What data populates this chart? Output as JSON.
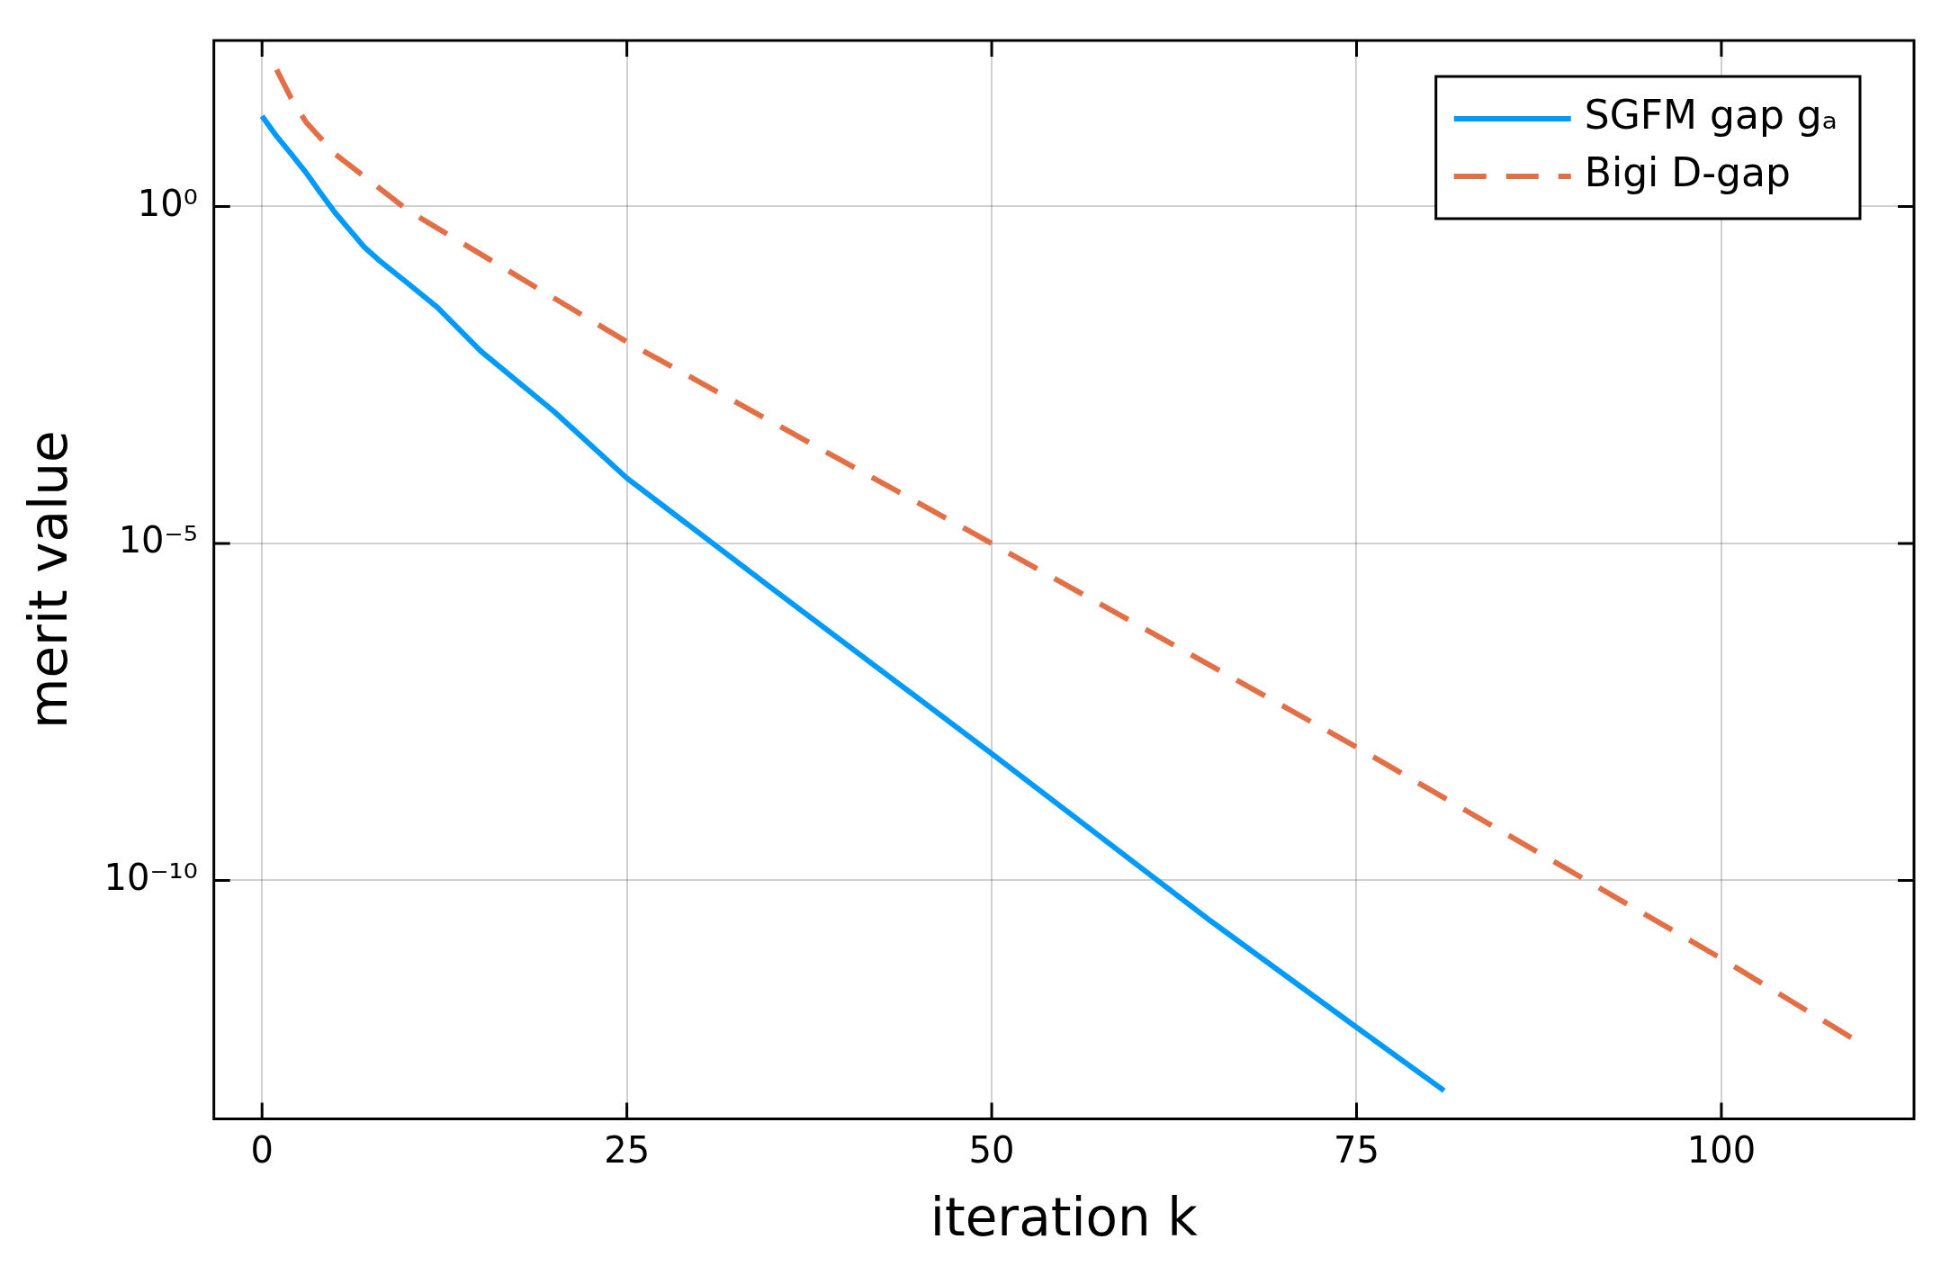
{
  "chart_data": {
    "type": "line",
    "xlabel": "iteration k",
    "ylabel": "merit value",
    "log": "y",
    "grid": true,
    "legend": "top right",
    "marker": "none",
    "xlim": [
      -3.3,
      113.2
    ],
    "xticks": [
      0,
      25,
      50,
      75,
      100
    ],
    "ylim": [
      2.9e-14,
      290
    ],
    "yticks": [
      {
        "value": 1,
        "label": "10⁰"
      },
      {
        "value": 1e-05,
        "label": "10⁻⁵"
      },
      {
        "value": 1e-10,
        "label": "10⁻¹⁰"
      }
    ],
    "series": [
      {
        "name": "SGFM gap gₐ",
        "color": "#009af9",
        "line_style": "solid",
        "x": [
          0,
          1,
          2,
          3,
          4,
          5,
          6,
          7,
          8,
          10,
          12,
          15,
          20,
          25,
          35,
          50,
          65,
          75,
          81
        ],
        "values": [
          22,
          11,
          6,
          3.2,
          1.6,
          0.81,
          0.45,
          0.25,
          0.16,
          0.072,
          0.032,
          0.0071,
          0.00091,
          9.3e-05,
          2.1e-06,
          7.6e-09,
          2.5e-11,
          6.6e-13,
          7.6e-14
        ]
      },
      {
        "name": "Bigi D-gap",
        "color": "#e26f46",
        "line_style": "dashed",
        "x": [
          1,
          2,
          3,
          5,
          8,
          10,
          25,
          50,
          75,
          100,
          109
        ],
        "values": [
          107,
          40,
          18,
          6,
          1.9,
          0.87,
          0.0098,
          1e-05,
          9.5e-09,
          6.9e-12,
          4.5e-13
        ]
      }
    ]
  }
}
